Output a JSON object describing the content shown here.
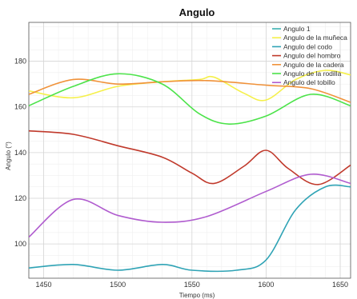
{
  "chart_data": {
    "type": "line",
    "title": "Angulo",
    "xlabel": "Tiempo (ms)",
    "ylabel": "Angulo (°)",
    "xlim": [
      1440,
      1657
    ],
    "ylim": [
      85,
      197
    ],
    "xticks": [
      1450,
      1500,
      1550,
      1600,
      1650
    ],
    "yticks": [
      100,
      120,
      140,
      160,
      180
    ],
    "grid": true,
    "legend_position": "top-right",
    "series": [
      {
        "name": "Angulo 1",
        "color": "#3ab0b0",
        "x": [],
        "y": []
      },
      {
        "name": "Angulo de la muñeca",
        "color": "#f5f04a",
        "x": [
          1440,
          1470,
          1500,
          1530,
          1555,
          1565,
          1585,
          1600,
          1620,
          1640,
          1657
        ],
        "y": [
          167,
          164,
          169,
          171,
          172,
          173,
          166,
          163,
          172,
          176,
          174
        ]
      },
      {
        "name": "Angulo del codo",
        "color": "#2fa3b5",
        "x": [
          1440,
          1470,
          1500,
          1530,
          1550,
          1580,
          1600,
          1620,
          1640,
          1657
        ],
        "y": [
          89.5,
          91,
          88.5,
          91,
          88.5,
          88.5,
          93,
          115,
          125,
          125
        ]
      },
      {
        "name": "Angulo del hombro",
        "color": "#c0392b",
        "x": [
          1440,
          1470,
          1500,
          1530,
          1550,
          1565,
          1585,
          1600,
          1615,
          1635,
          1657
        ],
        "y": [
          149.5,
          148,
          143,
          138,
          131,
          126.5,
          134,
          141,
          133,
          126,
          134.5
        ]
      },
      {
        "name": "Angulo de la cadera",
        "color": "#f0923a",
        "x": [
          1440,
          1470,
          1500,
          1530,
          1560,
          1600,
          1630,
          1657
        ],
        "y": [
          165.5,
          172,
          170,
          171,
          171.5,
          169.5,
          168,
          162
        ]
      },
      {
        "name": "Angulo de la rodilla",
        "color": "#4ce34a",
        "x": [
          1440,
          1470,
          1500,
          1530,
          1555,
          1575,
          1600,
          1630,
          1657
        ],
        "y": [
          160.5,
          169,
          174.5,
          170,
          157,
          152.5,
          156,
          165.5,
          160.5
        ]
      },
      {
        "name": "Angulo del tobillo",
        "color": "#b05ccf",
        "x": [
          1440,
          1470,
          1500,
          1530,
          1560,
          1600,
          1630,
          1657
        ],
        "y": [
          103,
          119.5,
          112.5,
          109.5,
          112,
          123,
          130.5,
          126.5
        ]
      }
    ]
  }
}
